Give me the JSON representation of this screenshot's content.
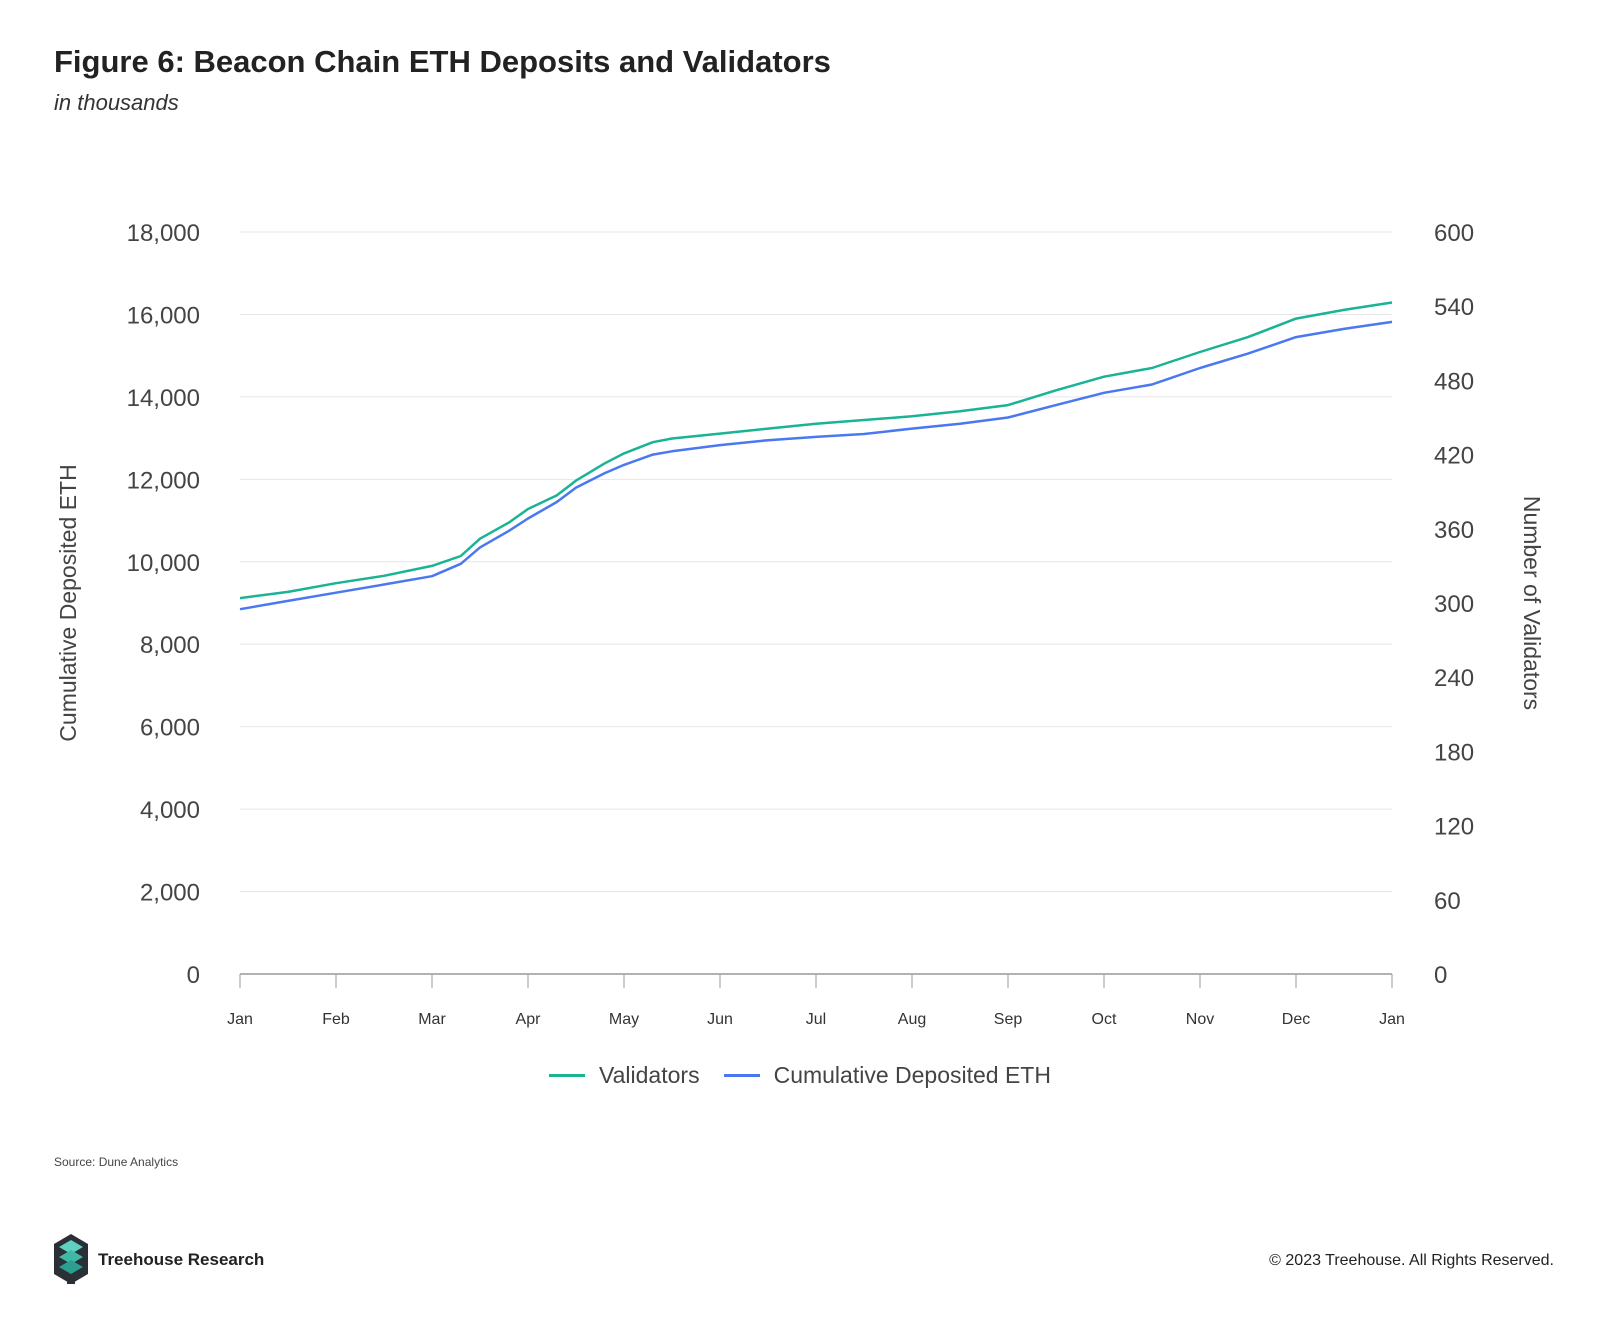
{
  "header": {
    "title": "Figure 6: Beacon Chain ETH Deposits and Validators",
    "subtitle": "in thousands"
  },
  "footer": {
    "source": "Source: Dune Analytics",
    "brand": "Treehouse Research",
    "copyright": "© 2023 Treehouse. All Rights Reserved."
  },
  "colors": {
    "validators": "#1ab394",
    "deposits": "#4a78f0",
    "grid": "#e6e6e6",
    "axis": "#999999"
  },
  "chart_data": {
    "type": "line",
    "title": "Figure 6: Beacon Chain ETH Deposits and Validators",
    "subtitle": "in thousands",
    "x_ticks": [
      "Jan",
      "Feb",
      "Mar",
      "Apr",
      "May",
      "Jun",
      "Jul",
      "Aug",
      "Sep",
      "Oct",
      "Nov",
      "Dec",
      "Jan"
    ],
    "x_label": "",
    "y_left": {
      "label": "Cumulative Deposited ETH",
      "range": [
        0,
        18000
      ],
      "ticks": [
        "0",
        "2,000",
        "4,000",
        "6,000",
        "8,000",
        "10,000",
        "12,000",
        "14,000",
        "16,000",
        "18,000"
      ]
    },
    "y_right": {
      "label": "Number of Validators",
      "range": [
        0,
        600
      ],
      "ticks": [
        "0",
        "60",
        "120",
        "180",
        "240",
        "300",
        "360",
        "420",
        "480",
        "540",
        "600"
      ]
    },
    "grid": true,
    "legend_position": "bottom-center",
    "series": [
      {
        "name": "Validators",
        "axis": "right",
        "x": [
          0,
          0.5,
          1,
          1.5,
          2,
          2.3,
          2.5,
          2.8,
          3,
          3.3,
          3.5,
          3.8,
          4,
          4.3,
          4.5,
          5,
          5.5,
          6,
          6.5,
          7,
          7.5,
          8,
          8.5,
          9,
          9.5,
          10,
          10.5,
          11,
          11.5,
          12
        ],
        "values": [
          304,
          309,
          316,
          322,
          330,
          338,
          352,
          365,
          376,
          387,
          399,
          413,
          421,
          430,
          433,
          437,
          441,
          445,
          448,
          451,
          455,
          460,
          472,
          483,
          490,
          503,
          515,
          530,
          537,
          543
        ]
      },
      {
        "name": "Cumulative Deposited ETH",
        "axis": "left",
        "x": [
          0,
          0.5,
          1,
          1.5,
          2,
          2.3,
          2.5,
          2.8,
          3,
          3.3,
          3.5,
          3.8,
          4,
          4.3,
          4.5,
          5,
          5.5,
          6,
          6.5,
          7,
          7.5,
          8,
          8.5,
          9,
          9.5,
          10,
          10.5,
          11,
          11.5,
          12
        ],
        "values": [
          8850,
          9050,
          9250,
          9450,
          9650,
          9950,
          10350,
          10750,
          11050,
          11450,
          11800,
          12150,
          12350,
          12600,
          12680,
          12830,
          12950,
          13030,
          13100,
          13230,
          13350,
          13500,
          13800,
          14100,
          14300,
          14700,
          15050,
          15450,
          15650,
          15820
        ]
      }
    ]
  }
}
